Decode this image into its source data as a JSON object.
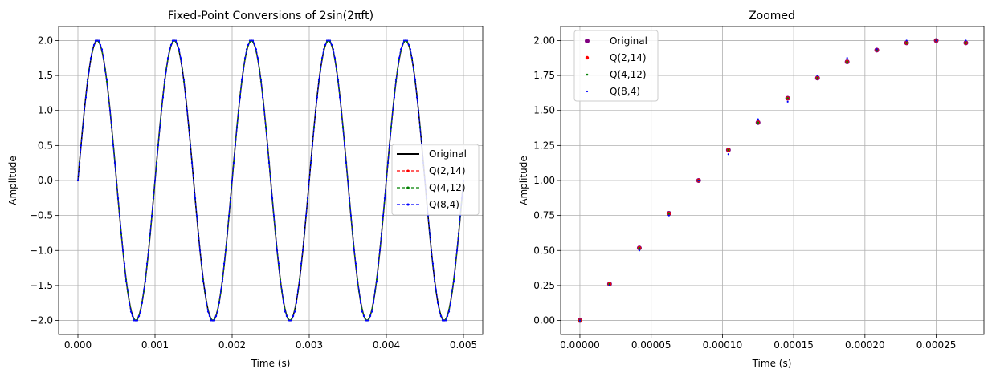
{
  "chart_data": [
    {
      "type": "line",
      "title": "Fixed-Point Conversions of 2sin(2πft)",
      "xlabel": "Time (s)",
      "ylabel": "Amplitude",
      "xlim": [
        -0.00025,
        0.00525
      ],
      "ylim": [
        -2.2,
        2.2
      ],
      "xticks": [
        "0.000",
        "0.001",
        "0.002",
        "0.003",
        "0.004",
        "0.005"
      ],
      "yticks": [
        "-2.0",
        "-1.5",
        "-1.0",
        "-0.5",
        "0.0",
        "0.5",
        "1.0",
        "1.5",
        "2.0"
      ],
      "grid": true,
      "legend_position": "center-right",
      "signal": {
        "amplitude": 2,
        "frequency_hz": 1000,
        "sample_step_s": 2.08333e-05,
        "t_start": 0,
        "t_end": 0.005
      },
      "series": [
        {
          "name": "Original",
          "color": "#000000",
          "style": "solid"
        },
        {
          "name": "Q(2,14)",
          "color": "#ff0000",
          "style": "dashed-marker"
        },
        {
          "name": "Q(4,12)",
          "color": "#008000",
          "style": "dashed-marker"
        },
        {
          "name": "Q(8,4)",
          "color": "#0000ff",
          "style": "dashed-marker"
        }
      ]
    },
    {
      "type": "scatter",
      "title": "Zoomed",
      "xlabel": "Time (s)",
      "ylabel": "Amplitude",
      "xlim": [
        -1.35e-05,
        0.0002835
      ],
      "ylim": [
        -0.1,
        2.1
      ],
      "xticks": [
        "0.00000",
        "0.00005",
        "0.00010",
        "0.00015",
        "0.00020",
        "0.00025"
      ],
      "yticks": [
        "0.00",
        "0.25",
        "0.50",
        "0.75",
        "1.00",
        "1.25",
        "1.50",
        "1.75",
        "2.00"
      ],
      "grid": true,
      "legend_position": "upper-left",
      "x": [
        0,
        2.08e-05,
        4.17e-05,
        6.25e-05,
        8.33e-05,
        0.0001042,
        0.000125,
        0.0001458,
        0.0001667,
        0.0001875,
        0.0002083,
        0.0002292,
        0.00025,
        0.0002708
      ],
      "series": [
        {
          "name": "Original",
          "color": "#800080",
          "values": [
            0,
            0.261,
            0.518,
            0.765,
            1.0,
            1.218,
            1.414,
            1.587,
            1.732,
            1.848,
            1.932,
            1.983,
            2.0,
            1.983
          ]
        },
        {
          "name": "Q(2,14)",
          "color": "#ff0000",
          "values": [
            0,
            0.261,
            0.518,
            0.765,
            1.0,
            1.218,
            1.414,
            1.587,
            1.732,
            1.848,
            1.932,
            1.983,
            2.0,
            1.983
          ]
        },
        {
          "name": "Q(4,12)",
          "color": "#008000",
          "values": [
            0,
            0.261,
            0.518,
            0.765,
            1.0,
            1.218,
            1.414,
            1.587,
            1.732,
            1.848,
            1.932,
            1.983,
            2.0,
            1.983
          ]
        },
        {
          "name": "Q(8,4)",
          "color": "#0000ff",
          "values": [
            0,
            0.25,
            0.5,
            0.75,
            1.0,
            1.1875,
            1.4375,
            1.5625,
            1.75,
            1.875,
            1.9375,
            2.0,
            2.0,
            2.0
          ]
        }
      ]
    }
  ]
}
